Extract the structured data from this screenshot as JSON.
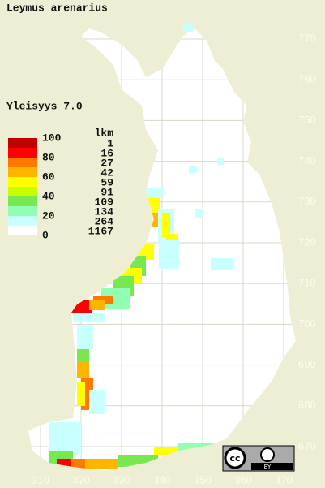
{
  "title": "Leymus arenarius",
  "frequency_label": "Yleisyys 7.0",
  "legend": {
    "scale_labels": [
      "100",
      "80",
      "60",
      "40",
      "20",
      "0"
    ],
    "count_header": "lkm",
    "counts": [
      "1",
      "16",
      "27",
      "42",
      "59",
      "91",
      "109",
      "134",
      "264",
      "1167"
    ]
  },
  "grid": {
    "northing": [
      "770",
      "760",
      "750",
      "740",
      "730",
      "720",
      "710",
      "700",
      "690",
      "680",
      "670"
    ],
    "easting": [
      "310",
      "320",
      "330",
      "340",
      "350",
      "360",
      "370"
    ]
  },
  "license": {
    "icon": "cc",
    "label": "BY"
  }
}
